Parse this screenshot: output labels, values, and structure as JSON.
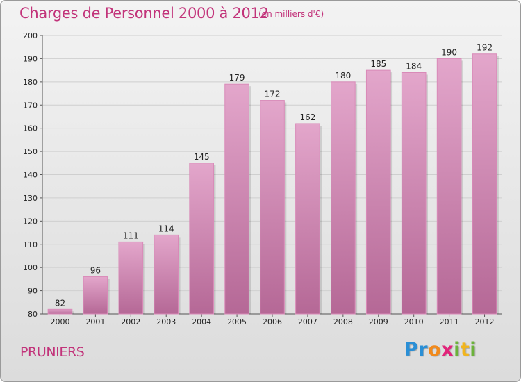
{
  "header": {
    "title": "Charges de Personnel 2000 à 2012",
    "subtitle": "(en milliers d'€)"
  },
  "place_label": "PRUNIERS",
  "logo": {
    "letters": [
      {
        "char": "P",
        "color": "#2a8fd6"
      },
      {
        "char": "r",
        "color": "#2a8fd6"
      },
      {
        "char": "o",
        "color": "#f28a1c"
      },
      {
        "char": "x",
        "color": "#e2237a"
      },
      {
        "char": "i",
        "color": "#6bb23a"
      },
      {
        "char": "t",
        "color": "#f2b51c"
      },
      {
        "char": "i",
        "color": "#6bb23a"
      }
    ]
  },
  "colors": {
    "accent": "#c2337a",
    "bar_top": "#e3a6cb",
    "bar_bottom": "#b56896",
    "bar_edge": "#d98ab8",
    "grid": "#cfcfcf"
  },
  "chart_data": {
    "type": "bar",
    "categories": [
      "2000",
      "2001",
      "2002",
      "2003",
      "2004",
      "2005",
      "2006",
      "2007",
      "2008",
      "2009",
      "2010",
      "2011",
      "2012"
    ],
    "values": [
      82,
      96,
      111,
      114,
      145,
      179,
      172,
      162,
      180,
      185,
      184,
      190,
      192
    ],
    "ylim": [
      80,
      200
    ],
    "yticks": [
      80,
      90,
      100,
      110,
      120,
      130,
      140,
      150,
      160,
      170,
      180,
      190,
      200
    ],
    "grid": true,
    "data_labels": true
  }
}
